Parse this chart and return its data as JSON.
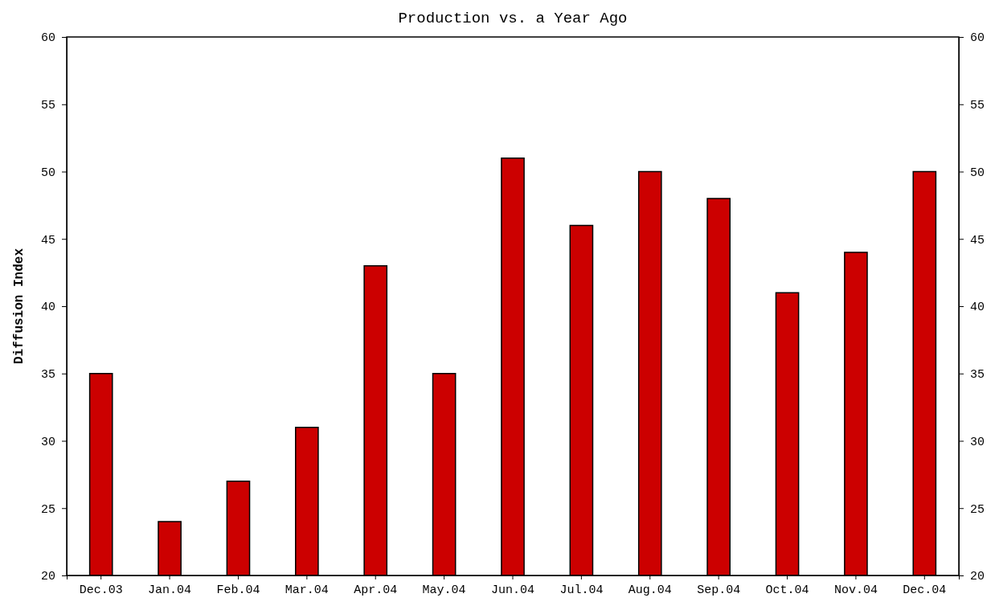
{
  "chart_data": {
    "type": "bar",
    "title": "Production vs. a Year Ago",
    "ylabel": "Diffusion Index",
    "categories": [
      "Dec.03",
      "Jan.04",
      "Feb.04",
      "Mar.04",
      "Apr.04",
      "May.04",
      "Jun.04",
      "Jul.04",
      "Aug.04",
      "Sep.04",
      "Oct.04",
      "Nov.04",
      "Dec.04"
    ],
    "values": [
      35,
      24,
      27,
      31,
      43,
      35,
      51,
      46,
      50,
      48,
      41,
      44,
      50
    ],
    "color": "#cc0000",
    "ylim": [
      20,
      60
    ],
    "yticks": [
      20,
      25,
      30,
      35,
      40,
      45,
      50,
      55,
      60
    ],
    "y2lim": [
      20,
      60
    ],
    "y2ticks": [
      20,
      25,
      30,
      35,
      40,
      45,
      50,
      55,
      60
    ],
    "grid": false
  }
}
